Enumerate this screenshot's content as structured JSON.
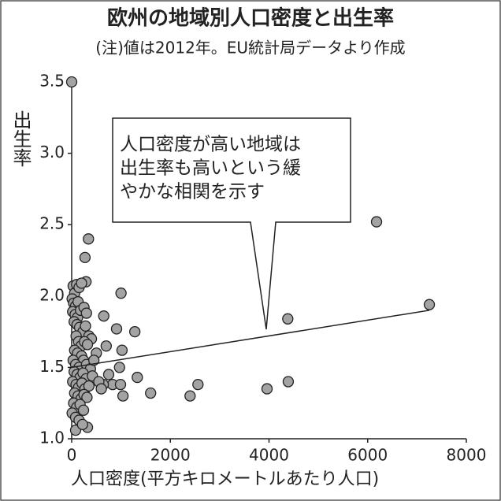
{
  "chart_data": {
    "type": "scatter",
    "title": "欧州の地域別人口密度と出生率",
    "subtitle": "(注)値は2012年。EU統計局データより作成",
    "y_label": "出生率",
    "x_label": "人口密度(平方キロメートルあたり人口)",
    "annotation": [
      "人口密度が高い地域は",
      "出生率も高いという緩",
      "やかな相関を示す"
    ],
    "color": "#a3a3a3",
    "x": [
      0,
      6180,
      7250,
      4380,
      1000,
      340,
      270,
      290,
      650,
      910,
      1280,
      1020,
      970,
      1330,
      830,
      1600,
      990,
      1040,
      2560,
      2400,
      3960,
      4390,
      640,
      320,
      80,
      30,
      60,
      100,
      150,
      200,
      10,
      40,
      80,
      130,
      20,
      70,
      120,
      180,
      250,
      300,
      50,
      110,
      160,
      230,
      280,
      350,
      400,
      90,
      140,
      190,
      260,
      320,
      60,
      120,
      200,
      240,
      30,
      80,
      150,
      300,
      380,
      50,
      110,
      170,
      230,
      290,
      420,
      20,
      90,
      140,
      210,
      270,
      350,
      60,
      130,
      190,
      250,
      310,
      40,
      100,
      170,
      240,
      10,
      80,
      150,
      220,
      500,
      550,
      450,
      600,
      700,
      750
    ],
    "values": [
      3.5,
      2.52,
      1.94,
      1.84,
      2.02,
      2.4,
      2.27,
      2.1,
      1.86,
      1.77,
      1.75,
      1.62,
      1.5,
      1.43,
      1.38,
      1.32,
      1.38,
      1.3,
      1.38,
      1.3,
      1.35,
      1.4,
      1.38,
      1.08,
      1.06,
      2.07,
      2.02,
      2.08,
      2.06,
      2.09,
      1.98,
      1.95,
      1.93,
      1.96,
      1.89,
      1.87,
      1.85,
      1.9,
      1.92,
      1.88,
      1.82,
      1.8,
      1.78,
      1.75,
      1.79,
      1.72,
      1.7,
      1.72,
      1.68,
      1.65,
      1.68,
      1.66,
      1.62,
      1.6,
      1.58,
      1.55,
      1.55,
      1.52,
      1.5,
      1.52,
      1.49,
      1.47,
      1.45,
      1.43,
      1.46,
      1.42,
      1.44,
      1.4,
      1.38,
      1.36,
      1.39,
      1.35,
      1.37,
      1.32,
      1.3,
      1.28,
      1.31,
      1.29,
      1.25,
      1.22,
      1.24,
      1.2,
      1.18,
      1.15,
      1.13,
      1.1,
      1.6,
      1.4,
      1.55,
      1.35,
      1.65,
      1.45
    ],
    "trend_line": {
      "x": [
        0,
        7250
      ],
      "values": [
        1.5,
        1.9
      ]
    },
    "xlim": [
      0,
      8000
    ],
    "xticks": [
      0,
      2000,
      4000,
      6000,
      8000
    ],
    "ylim": [
      1.0,
      3.5
    ],
    "yticks": [
      {
        "value": 1.0,
        "label": "1.0"
      },
      1.5,
      {
        "value": 2.0,
        "label": "2.0"
      },
      2.5,
      {
        "value": 3.0,
        "label": "3.0"
      },
      3.5
    ]
  }
}
